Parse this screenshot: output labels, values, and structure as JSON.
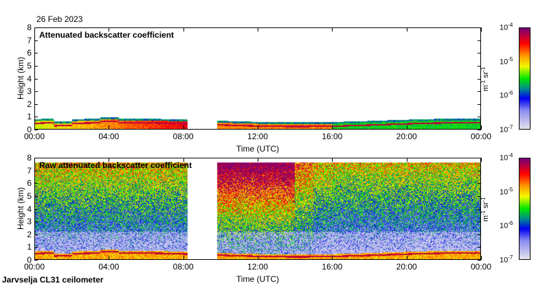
{
  "header": {
    "date": "26 Feb 2023"
  },
  "footer": {
    "instrument": "Jarvselja CL31 ceilometer"
  },
  "colors": {
    "missing": "#ffffff"
  },
  "chart_data": [
    {
      "type": "heatmap",
      "title": "Attenuated backscatter coefficient",
      "xlabel": "Time (UTC)",
      "ylabel": "Height (km)",
      "xlim": [
        0,
        24
      ],
      "ylim": [
        0,
        8
      ],
      "x_ticks": [
        "00:00",
        "04:00",
        "08:00",
        "12:00",
        "16:00",
        "20:00",
        "00:00"
      ],
      "y_ticks": [
        "0",
        "1",
        "2",
        "3",
        "4",
        "5",
        "6",
        "7",
        "8"
      ],
      "colorbar": {
        "label_base": "m",
        "label_exp1": "-1",
        "label_sr": " sr",
        "label_exp2": "-1",
        "scale": "log",
        "range": [
          1e-07,
          0.0001
        ],
        "ticks": [
          {
            "base": "10",
            "exp": "-4"
          },
          {
            "base": "10",
            "exp": "-5"
          },
          {
            "base": "10",
            "exp": "-6"
          },
          {
            "base": "10",
            "exp": "-7"
          }
        ]
      },
      "data_gap_hours": [
        8.2,
        9.8
      ],
      "boundary_layer_top_km": 0.7
    },
    {
      "type": "heatmap",
      "title": "Raw attenuated backscatter coefficient",
      "xlabel": "Time (UTC)",
      "ylabel": "Height (km)",
      "xlim": [
        0,
        24
      ],
      "ylim": [
        0,
        8
      ],
      "x_ticks": [
        "00:00",
        "04:00",
        "08:00",
        "12:00",
        "16:00",
        "20:00",
        "00:00"
      ],
      "y_ticks": [
        "0",
        "1",
        "2",
        "3",
        "4",
        "5",
        "6",
        "7",
        "8"
      ],
      "colorbar": {
        "label_base": "m",
        "label_exp1": "-1",
        "label_sr": " sr",
        "label_exp2": "-1",
        "scale": "log",
        "range": [
          1e-07,
          0.0001
        ],
        "ticks": [
          {
            "base": "10",
            "exp": "-4"
          },
          {
            "base": "10",
            "exp": "-5"
          },
          {
            "base": "10",
            "exp": "-6"
          },
          {
            "base": "10",
            "exp": "-7"
          }
        ]
      },
      "data_gap_hours": [
        8.2,
        9.8
      ],
      "max_height_km": 7.7
    }
  ]
}
